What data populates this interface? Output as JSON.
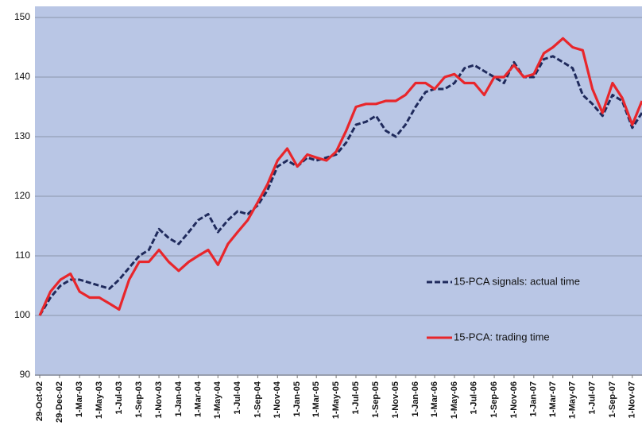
{
  "chart_data": {
    "type": "line",
    "x": [
      "2002-10-29",
      "2002-12-01",
      "2003-01-01",
      "2003-02-01",
      "2003-03-01",
      "2003-04-01",
      "2003-05-01",
      "2003-06-01",
      "2003-07-01",
      "2003-08-01",
      "2003-09-01",
      "2003-10-01",
      "2003-11-01",
      "2003-12-01",
      "2004-01-01",
      "2004-02-01",
      "2004-03-01",
      "2004-04-01",
      "2004-05-01",
      "2004-06-01",
      "2004-07-01",
      "2004-08-01",
      "2004-09-01",
      "2004-10-01",
      "2004-11-01",
      "2004-12-01",
      "2005-01-01",
      "2005-02-01",
      "2005-03-01",
      "2005-04-01",
      "2005-05-01",
      "2005-06-01",
      "2005-07-01",
      "2005-08-01",
      "2005-09-01",
      "2005-10-01",
      "2005-11-01",
      "2005-12-01",
      "2006-01-01",
      "2006-02-01",
      "2006-03-01",
      "2006-04-01",
      "2006-05-01",
      "2006-06-01",
      "2006-07-01",
      "2006-08-01",
      "2006-09-01",
      "2006-10-01",
      "2006-11-01",
      "2006-12-01",
      "2007-01-01",
      "2007-02-01",
      "2007-03-01",
      "2007-04-01",
      "2007-05-01",
      "2007-06-01",
      "2007-07-01",
      "2007-08-01",
      "2007-09-01",
      "2007-10-01",
      "2007-11-01",
      "2007-12-01"
    ],
    "series": [
      {
        "name": "15-PCA signals: actual time",
        "color": "#1f2a5c",
        "dashed": true,
        "values": [
          100,
          103,
          105,
          106,
          106,
          105.5,
          105,
          104.5,
          106,
          108,
          110,
          111,
          114.5,
          113,
          112,
          114,
          116,
          117,
          114,
          116,
          117.5,
          117,
          118.5,
          121,
          125,
          126,
          125,
          126.5,
          126,
          126.5,
          127,
          129,
          132,
          132.5,
          133.5,
          131,
          130,
          132,
          135,
          137.5,
          138,
          138,
          139,
          141.5,
          142,
          141,
          140,
          139,
          142.5,
          140,
          140,
          143,
          143.5,
          142.5,
          141.5,
          137,
          135.5,
          133.5,
          137,
          136,
          131.5,
          134
        ]
      },
      {
        "name": "15-PCA: trading time",
        "color": "#e8262b",
        "dashed": false,
        "values": [
          100,
          104,
          106,
          107,
          104,
          103,
          103,
          102,
          101,
          106,
          109,
          109,
          111,
          109,
          107.5,
          109,
          110,
          111,
          108.5,
          112,
          114,
          116,
          119,
          122,
          126,
          128,
          125,
          127,
          126.5,
          126,
          127.5,
          131,
          135,
          135.5,
          135.5,
          136,
          136,
          137,
          139,
          139,
          138,
          140,
          140.5,
          139,
          139,
          137,
          140,
          140,
          142,
          140,
          140.5,
          144,
          145,
          146.5,
          145,
          144.5,
          138,
          134,
          139,
          136.5,
          132,
          136
        ]
      }
    ],
    "xlim": [
      "2002-10-29",
      "2007-12-01"
    ],
    "xticks": [
      {
        "value": "2002-10-29",
        "label": "29-Oct-02"
      },
      {
        "value": "2002-12-29",
        "label": "29-Dec-02"
      },
      {
        "value": "2003-03-01",
        "label": "1-Mar-03"
      },
      {
        "value": "2003-05-01",
        "label": "1-May-03"
      },
      {
        "value": "2003-07-01",
        "label": "1-Jul-03"
      },
      {
        "value": "2003-09-01",
        "label": "1-Sep-03"
      },
      {
        "value": "2003-11-01",
        "label": "1-Nov-03"
      },
      {
        "value": "2004-01-01",
        "label": "1-Jan-04"
      },
      {
        "value": "2004-03-01",
        "label": "1-Mar-04"
      },
      {
        "value": "2004-05-01",
        "label": "1-May-04"
      },
      {
        "value": "2004-07-01",
        "label": "1-Jul-04"
      },
      {
        "value": "2004-09-01",
        "label": "1-Sep-04"
      },
      {
        "value": "2004-11-01",
        "label": "1-Nov-04"
      },
      {
        "value": "2005-01-01",
        "label": "1-Jan-05"
      },
      {
        "value": "2005-03-01",
        "label": "1-Mar-05"
      },
      {
        "value": "2005-05-01",
        "label": "1-May-05"
      },
      {
        "value": "2005-07-01",
        "label": "1-Jul-05"
      },
      {
        "value": "2005-09-01",
        "label": "1-Sep-05"
      },
      {
        "value": "2005-11-01",
        "label": "1-Nov-05"
      },
      {
        "value": "2006-01-01",
        "label": "1-Jan-06"
      },
      {
        "value": "2006-03-01",
        "label": "1-Mar-06"
      },
      {
        "value": "2006-05-01",
        "label": "1-May-06"
      },
      {
        "value": "2006-07-01",
        "label": "1-Jul-06"
      },
      {
        "value": "2006-09-01",
        "label": "1-Sep-06"
      },
      {
        "value": "2006-11-01",
        "label": "1-Nov-06"
      },
      {
        "value": "2007-01-01",
        "label": "1-Jan-07"
      },
      {
        "value": "2007-03-01",
        "label": "1-Mar-07"
      },
      {
        "value": "2007-05-01",
        "label": "1-May-07"
      },
      {
        "value": "2007-07-01",
        "label": "1-Jul-07"
      },
      {
        "value": "2007-09-01",
        "label": "1-Sep-07"
      },
      {
        "value": "2007-11-01",
        "label": "1-Nov-07"
      }
    ],
    "ylim": [
      90,
      150
    ],
    "yticks": [
      90,
      100,
      110,
      120,
      130,
      140,
      150
    ],
    "grid": true,
    "legend": "right"
  }
}
